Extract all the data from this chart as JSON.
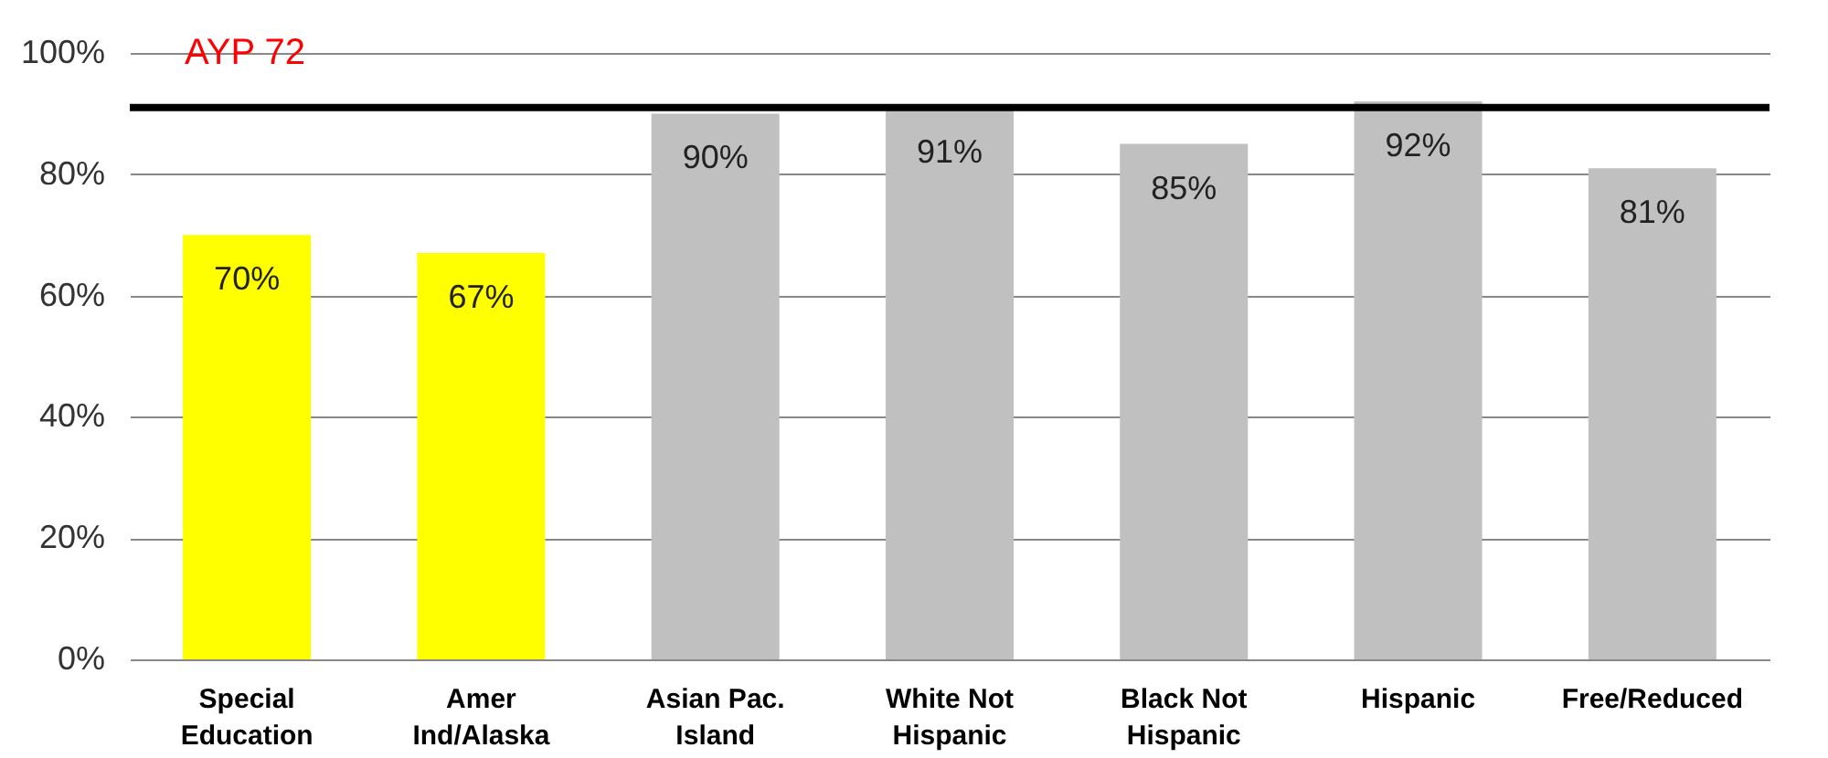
{
  "chart_data": {
    "type": "bar",
    "categories": [
      "Special Education",
      "Amer Ind/Alaska",
      "Asian Pac. Island",
      "White Not Hispanic",
      "Black Not Hispanic",
      "Hispanic",
      "Free/Reduced"
    ],
    "values": [
      70,
      67,
      90,
      91,
      85,
      92,
      81
    ],
    "value_labels": [
      "70%",
      "67%",
      "90%",
      "91%",
      "85%",
      "92%",
      "81%"
    ],
    "colors": [
      "#ffff00",
      "#ffff00",
      "#c0c0c0",
      "#c0c0c0",
      "#c0c0c0",
      "#c0c0c0",
      "#c0c0c0"
    ],
    "ylim": [
      0,
      100
    ],
    "yticks": [
      {
        "value": 0,
        "label": "0%"
      },
      {
        "value": 20,
        "label": "20%"
      },
      {
        "value": 40,
        "label": "40%"
      },
      {
        "value": 60,
        "label": "60%"
      },
      {
        "value": 80,
        "label": "80%"
      },
      {
        "value": 100,
        "label": "100%"
      }
    ],
    "grid": "y",
    "ref_lines": [
      {
        "axis": "y",
        "value": 91,
        "label": "AYP 72",
        "color": "#000000"
      }
    ]
  }
}
